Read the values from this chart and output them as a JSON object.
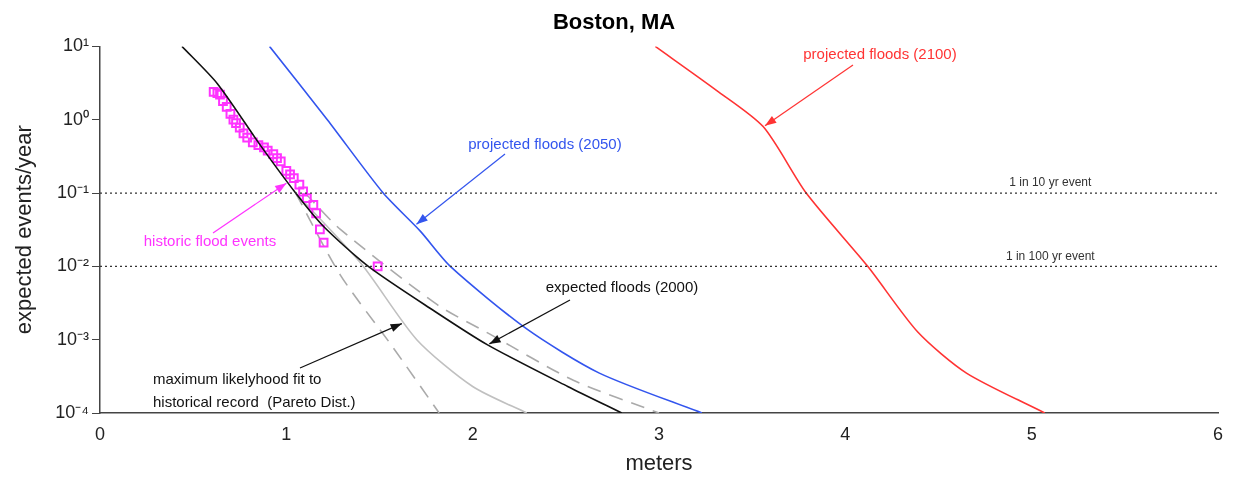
{
  "chart_data": {
    "type": "line",
    "title": "Boston, MA",
    "xlabel": "meters",
    "ylabel": "expected events/year",
    "xlim": [
      0,
      6
    ],
    "xticks": [
      0,
      1,
      2,
      3,
      4,
      5,
      6
    ],
    "ylim": [
      0.0001,
      10
    ],
    "yticks": [
      {
        "value": 0.0001,
        "label": "10⁻⁴"
      },
      {
        "value": 0.001,
        "label": "10⁻³"
      },
      {
        "value": 0.01,
        "label": "10⁻²"
      },
      {
        "value": 0.1,
        "label": "10⁻¹"
      },
      {
        "value": 1,
        "label": "10⁰"
      },
      {
        "value": 10,
        "label": "10¹"
      }
    ],
    "log": "y",
    "grid": false,
    "legend": false,
    "marker": "none",
    "line_style": "solid",
    "series": [
      {
        "type": "line",
        "color": "#111111",
        "x": [
          0.44,
          0.63,
          0.86,
          1.05,
          1.2,
          1.44,
          1.79,
          2.08,
          2.51,
          2.8
        ],
        "values": [
          10,
          3.1,
          0.45,
          0.1,
          0.035,
          0.01,
          0.0025,
          0.00085,
          0.00023,
          0.0001
        ]
      },
      {
        "type": "line",
        "color": "#3355ee",
        "x": [
          0.91,
          1.22,
          1.52,
          1.72,
          1.88,
          2.29,
          2.68,
          3.23
        ],
        "values": [
          10,
          1,
          0.1,
          0.03,
          0.01,
          0.0014,
          0.00035,
          0.0001
        ]
      },
      {
        "type": "line",
        "color": "#ff3333",
        "x": [
          2.98,
          3.31,
          3.56,
          3.79,
          4.12,
          4.39,
          4.65,
          5.07
        ],
        "values": [
          10,
          2.5,
          0.8,
          0.1,
          0.01,
          0.00126,
          0.00035,
          0.0001
        ]
      },
      {
        "type": "scatter",
        "color": "#ff33ff",
        "marker": "square",
        "x": [
          0.61,
          0.63,
          0.644,
          0.66,
          0.68,
          0.7,
          0.716,
          0.73,
          0.75,
          0.77,
          0.79,
          0.82,
          0.85,
          0.88,
          0.9,
          0.93,
          0.95,
          0.97,
          1.0,
          1.02,
          1.04,
          1.07,
          1.09,
          1.11,
          1.145,
          1.16,
          1.18,
          1.2,
          1.49
        ],
        "values": [
          2.4,
          2.3,
          2.2,
          1.8,
          1.5,
          1.2,
          1.0,
          0.9,
          0.78,
          0.65,
          0.57,
          0.49,
          0.45,
          0.42,
          0.38,
          0.34,
          0.3,
          0.27,
          0.2,
          0.18,
          0.16,
          0.13,
          0.105,
          0.085,
          0.069,
          0.053,
          0.032,
          0.021,
          0.01
        ]
      },
      {
        "type": "line",
        "color": "#aaaaaa",
        "line_style": "dashed",
        "x": [
          1.1,
          1.29,
          1.81,
          2.09,
          2.54,
          3.0
        ],
        "values": [
          0.1,
          0.032,
          0.003,
          0.0012,
          0.00028,
          0.0001
        ]
      },
      {
        "type": "line",
        "color": "#c0c0c0",
        "x": [
          1.05,
          1.4,
          1.7,
          2.0,
          2.29
        ],
        "values": [
          0.1,
          0.011,
          0.001,
          0.00023,
          0.0001
        ]
      },
      {
        "type": "line",
        "color": "#aaaaaa",
        "line_style": "dashed",
        "x": [
          1.05,
          1.29,
          1.57,
          1.82
        ],
        "values": [
          0.1,
          0.0076,
          0.0008,
          0.0001
        ]
      }
    ],
    "ref_lines": [
      {
        "axis": "y",
        "value": 0.1,
        "label": "1 in 10 yr event",
        "line_style": "dotted",
        "color": "#333333"
      },
      {
        "axis": "y",
        "value": 0.01,
        "label": "1 in 100 yr event",
        "line_style": "dotted",
        "color": "#333333"
      }
    ],
    "annotations": [
      {
        "text": "projected floods (2100)",
        "x": 3.56,
        "y": 0.8
      },
      {
        "text": "projected floods (2050)",
        "x": 1.69,
        "y": 0.036
      },
      {
        "text": "historic flood events",
        "x": 1.04,
        "y": 0.16
      },
      {
        "text": "expected floods (2000)",
        "x": 2.08,
        "y": 0.00085
      },
      {
        "text": "maximum likelyhood fit to\nhistorical record  (Pareto Dist.)",
        "x": 1.63,
        "y": 0.0017
      }
    ]
  }
}
